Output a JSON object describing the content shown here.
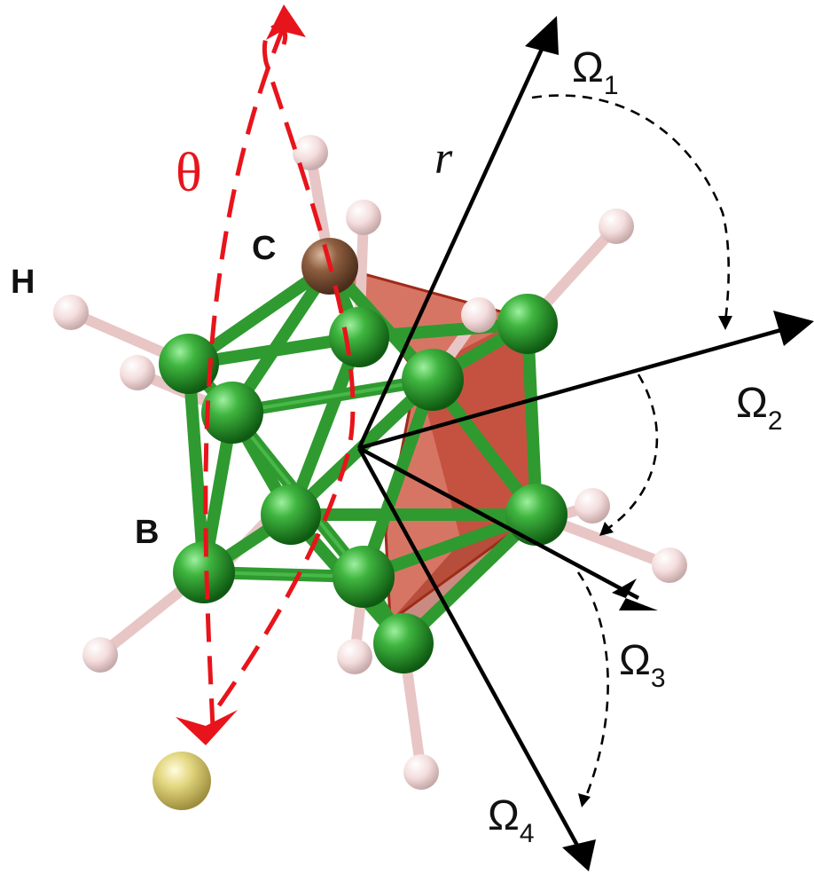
{
  "labels": {
    "H": "H",
    "C": "C",
    "B": "B",
    "r": "r",
    "theta": "θ",
    "omega": "Ω",
    "omega_subscripts": [
      "1",
      "2",
      "3",
      "4"
    ]
  },
  "colors": {
    "boron_atom": "#2e9a2e",
    "carbon_atom": "#8a5a3c",
    "hydrogen_atom": "#f2dede",
    "metal_atom": "#d8c76a",
    "polyhedron_face": "#c8402a",
    "rotation_axis": "#e8141b",
    "vectors": "#000000"
  }
}
